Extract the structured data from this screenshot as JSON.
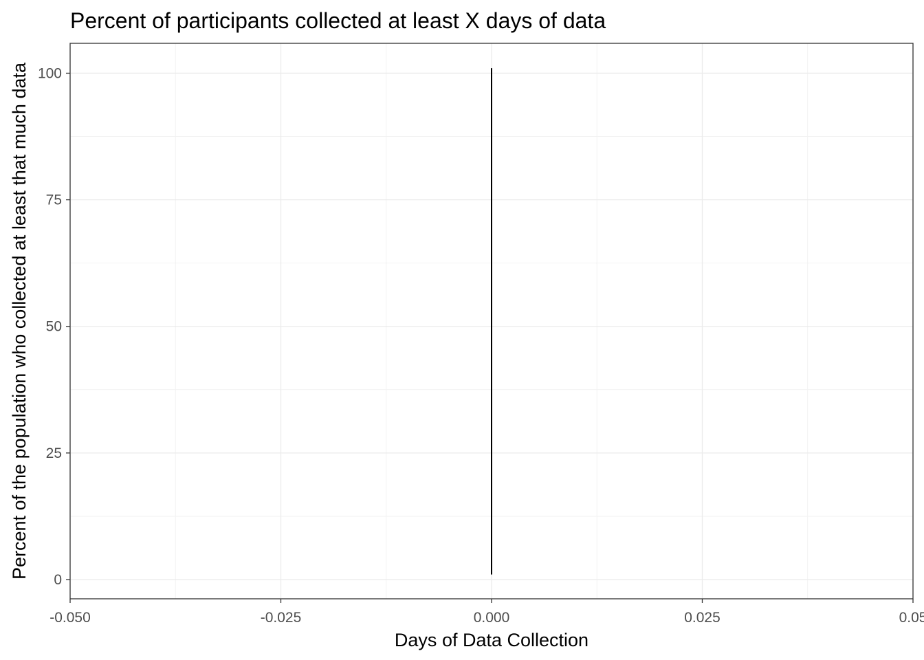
{
  "chart_data": {
    "type": "line",
    "title": "Percent of participants collected at least X days of data",
    "xlabel": "Days of Data Collection",
    "ylabel": "Percent of the population who collected at least that much data",
    "xlim": [
      -0.05,
      0.05
    ],
    "ylim": [
      -3.8,
      105.9
    ],
    "x_ticks": [
      -0.05,
      -0.025,
      0,
      0.025,
      0.05
    ],
    "x_tick_labels": [
      "-0.050",
      "-0.025",
      "0.000",
      "0.025",
      "0.05"
    ],
    "y_ticks": [
      0,
      25,
      50,
      75,
      100
    ],
    "y_tick_labels": [
      "0",
      "25",
      "50",
      "75",
      "100"
    ],
    "grid": true,
    "colors": {
      "line": "#000000",
      "grid_major": "#ebebeb",
      "grid_minor": "#f2f2f2",
      "panel_border": "#333333",
      "tick_text": "#4d4d4d"
    },
    "series": [
      {
        "x": [
          0,
          0
        ],
        "y": [
          1,
          101
        ]
      }
    ]
  }
}
